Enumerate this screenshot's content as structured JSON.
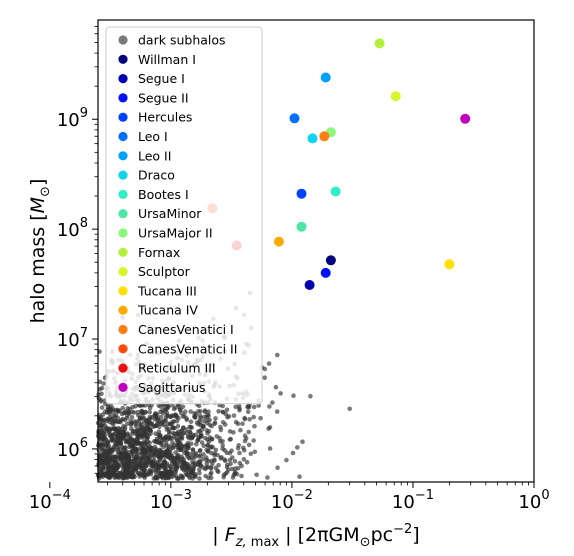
{
  "chart_data": {
    "type": "scatter",
    "xscale": "log",
    "yscale": "log",
    "xlim": [
      0.00025,
      1.0
    ],
    "ylim": [
      500000,
      8000000000
    ],
    "xlabel": "| F_{z,max} | [2πGM⊙pc⁻²]",
    "ylabel": "halo mass [M⊙]",
    "xticks": [
      {
        "value": 0.0001,
        "base": "10",
        "exp": "−4"
      },
      {
        "value": 0.001,
        "base": "10",
        "exp": "−3"
      },
      {
        "value": 0.01,
        "base": "10",
        "exp": "−2"
      },
      {
        "value": 0.1,
        "base": "10",
        "exp": "−1"
      },
      {
        "value": 1.0,
        "base": "10",
        "exp": "0"
      }
    ],
    "yticks": [
      {
        "value": 1000000,
        "base": "10",
        "exp": "6"
      },
      {
        "value": 10000000,
        "base": "10",
        "exp": "7"
      },
      {
        "value": 100000000,
        "base": "10",
        "exp": "8"
      },
      {
        "value": 1000000000,
        "base": "10",
        "exp": "9"
      }
    ],
    "legend_position": "upper-left",
    "background_series": {
      "name": "dark subhalos",
      "color": "#333333",
      "opacity": 0.65,
      "count": 2600,
      "x_log_center": -3.55,
      "x_log_sigma": 0.5,
      "y_log_center": 5.85,
      "y_log_sigma": 0.42
    },
    "series": [
      {
        "name": "Willman I",
        "color": "#00007f",
        "x": 0.021,
        "y": 52000000
      },
      {
        "name": "Segue I",
        "color": "#0000b2",
        "x": 0.014,
        "y": 31000000
      },
      {
        "name": "Segue II",
        "color": "#0010ff",
        "x": 0.019,
        "y": 40000000
      },
      {
        "name": "Hercules",
        "color": "#0040ff",
        "x": 0.012,
        "y": 210000000
      },
      {
        "name": "Leo I",
        "color": "#0070ff",
        "x": 0.0105,
        "y": 1020000000
      },
      {
        "name": "Leo II",
        "color": "#00a0ff",
        "x": 0.019,
        "y": 2400000000
      },
      {
        "name": "Draco",
        "color": "#10d4f0",
        "x": 0.0148,
        "y": 670000000
      },
      {
        "name": "Bootes I",
        "color": "#30eec6",
        "x": 0.023,
        "y": 220000000
      },
      {
        "name": "UrsaMinor",
        "color": "#4de6a5",
        "x": 0.012,
        "y": 105000000
      },
      {
        "name": "UrsaMajor II",
        "color": "#8af87a",
        "x": 0.021,
        "y": 760000000
      },
      {
        "name": "Fornax",
        "color": "#b3f03a",
        "x": 0.053,
        "y": 4900000000
      },
      {
        "name": "Sculptor",
        "color": "#d8f52a",
        "x": 0.072,
        "y": 1620000000
      },
      {
        "name": "Tucana III",
        "color": "#ffe100",
        "x": 0.2,
        "y": 48000000
      },
      {
        "name": "Tucana IV",
        "color": "#ffaa00",
        "x": 0.0078,
        "y": 77000000
      },
      {
        "name": "CanesVenatici I",
        "color": "#ff7e14",
        "x": 0.0185,
        "y": 700000000
      },
      {
        "name": "CanesVenatici II",
        "color": "#ff4a0a",
        "x": 0.0022,
        "y": 155000000
      },
      {
        "name": "Reticulum III",
        "color": "#ee1010",
        "x": 0.0035,
        "y": 71000000
      },
      {
        "name": "Sagittarius",
        "color": "#c000c0",
        "x": 0.27,
        "y": 1010000000
      }
    ]
  }
}
